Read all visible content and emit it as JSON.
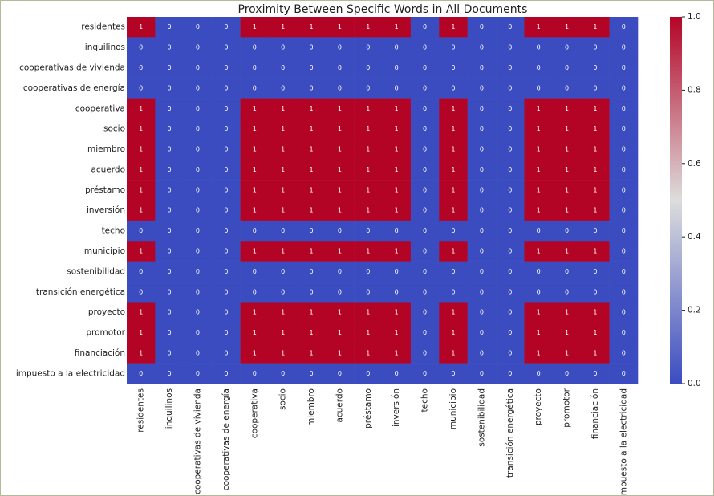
{
  "chart_data": {
    "type": "heatmap",
    "title": "Proximity Between Specific Words in All Documents",
    "x_labels": [
      "residentes",
      "inquilinos",
      "cooperativas de vivienda",
      "cooperativas de energía",
      "cooperativa",
      "socio",
      "miembro",
      "acuerdo",
      "préstamo",
      "inversión",
      "techo",
      "municipio",
      "sostenibilidad",
      "transición energética",
      "proyecto",
      "promotor",
      "financiación",
      "impuesto a la electricidad"
    ],
    "y_labels": [
      "residentes",
      "inquilinos",
      "cooperativas de vivienda",
      "cooperativas de energía",
      "cooperativa",
      "socio",
      "miembro",
      "acuerdo",
      "préstamo",
      "inversión",
      "techo",
      "municipio",
      "sostenibilidad",
      "transición energética",
      "proyecto",
      "promotor",
      "financiación",
      "impuesto a la electricidad"
    ],
    "values": [
      [
        1,
        0,
        0,
        0,
        1,
        1,
        1,
        1,
        1,
        1,
        0,
        1,
        0,
        0,
        1,
        1,
        1,
        0
      ],
      [
        0,
        0,
        0,
        0,
        0,
        0,
        0,
        0,
        0,
        0,
        0,
        0,
        0,
        0,
        0,
        0,
        0,
        0
      ],
      [
        0,
        0,
        0,
        0,
        0,
        0,
        0,
        0,
        0,
        0,
        0,
        0,
        0,
        0,
        0,
        0,
        0,
        0
      ],
      [
        0,
        0,
        0,
        0,
        0,
        0,
        0,
        0,
        0,
        0,
        0,
        0,
        0,
        0,
        0,
        0,
        0,
        0
      ],
      [
        1,
        0,
        0,
        0,
        1,
        1,
        1,
        1,
        1,
        1,
        0,
        1,
        0,
        0,
        1,
        1,
        1,
        0
      ],
      [
        1,
        0,
        0,
        0,
        1,
        1,
        1,
        1,
        1,
        1,
        0,
        1,
        0,
        0,
        1,
        1,
        1,
        0
      ],
      [
        1,
        0,
        0,
        0,
        1,
        1,
        1,
        1,
        1,
        1,
        0,
        1,
        0,
        0,
        1,
        1,
        1,
        0
      ],
      [
        1,
        0,
        0,
        0,
        1,
        1,
        1,
        1,
        1,
        1,
        0,
        1,
        0,
        0,
        1,
        1,
        1,
        0
      ],
      [
        1,
        0,
        0,
        0,
        1,
        1,
        1,
        1,
        1,
        1,
        0,
        1,
        0,
        0,
        1,
        1,
        1,
        0
      ],
      [
        1,
        0,
        0,
        0,
        1,
        1,
        1,
        1,
        1,
        1,
        0,
        1,
        0,
        0,
        1,
        1,
        1,
        0
      ],
      [
        0,
        0,
        0,
        0,
        0,
        0,
        0,
        0,
        0,
        0,
        0,
        0,
        0,
        0,
        0,
        0,
        0,
        0
      ],
      [
        1,
        0,
        0,
        0,
        1,
        1,
        1,
        1,
        1,
        1,
        0,
        1,
        0,
        0,
        1,
        1,
        1,
        0
      ],
      [
        0,
        0,
        0,
        0,
        0,
        0,
        0,
        0,
        0,
        0,
        0,
        0,
        0,
        0,
        0,
        0,
        0,
        0
      ],
      [
        0,
        0,
        0,
        0,
        0,
        0,
        0,
        0,
        0,
        0,
        0,
        0,
        0,
        0,
        0,
        0,
        0,
        0
      ],
      [
        1,
        0,
        0,
        0,
        1,
        1,
        1,
        1,
        1,
        1,
        0,
        1,
        0,
        0,
        1,
        1,
        1,
        0
      ],
      [
        1,
        0,
        0,
        0,
        1,
        1,
        1,
        1,
        1,
        1,
        0,
        1,
        0,
        0,
        1,
        1,
        1,
        0
      ],
      [
        1,
        0,
        0,
        0,
        1,
        1,
        1,
        1,
        1,
        1,
        0,
        1,
        0,
        0,
        1,
        1,
        1,
        0
      ],
      [
        0,
        0,
        0,
        0,
        0,
        0,
        0,
        0,
        0,
        0,
        0,
        0,
        0,
        0,
        0,
        0,
        0,
        0
      ]
    ],
    "colormap": [
      "#3b4cc0",
      "#dddddd",
      "#b40426"
    ],
    "clim": [
      0,
      1
    ],
    "cticks": [
      {
        "value": 0,
        "label": "0.0"
      },
      {
        "value": 0.2,
        "label": "0.2"
      },
      {
        "value": 0.4,
        "label": "0.4"
      },
      {
        "value": 0.6,
        "label": "0.6"
      },
      {
        "value": 0.8,
        "label": "0.8"
      },
      {
        "value": 1,
        "label": "1.0"
      }
    ]
  }
}
